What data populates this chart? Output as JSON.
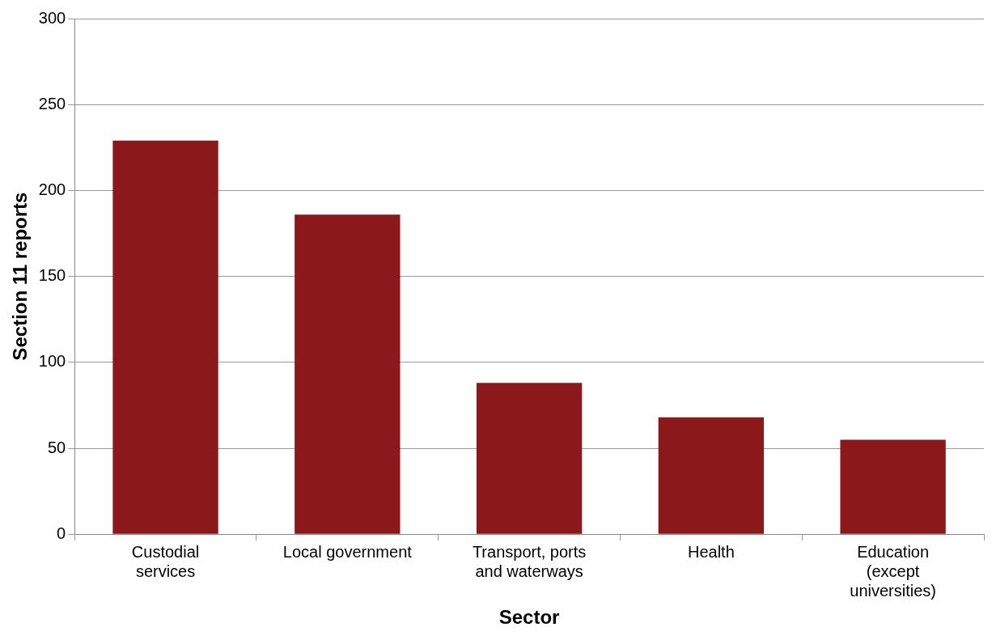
{
  "chart_data": {
    "type": "bar",
    "xlabel": "Sector",
    "ylabel": "Section 11 reports",
    "categories": [
      "Custodial services",
      "Local government",
      "Transport, ports and waterways",
      "Health",
      "Education (except universities)"
    ],
    "values": [
      229,
      186,
      88,
      68,
      55
    ],
    "color": "#8b191c",
    "ylim": [
      0,
      300
    ],
    "yticks": [
      0,
      50,
      100,
      150,
      200,
      250,
      300
    ],
    "grid": "y",
    "legend": false
  }
}
